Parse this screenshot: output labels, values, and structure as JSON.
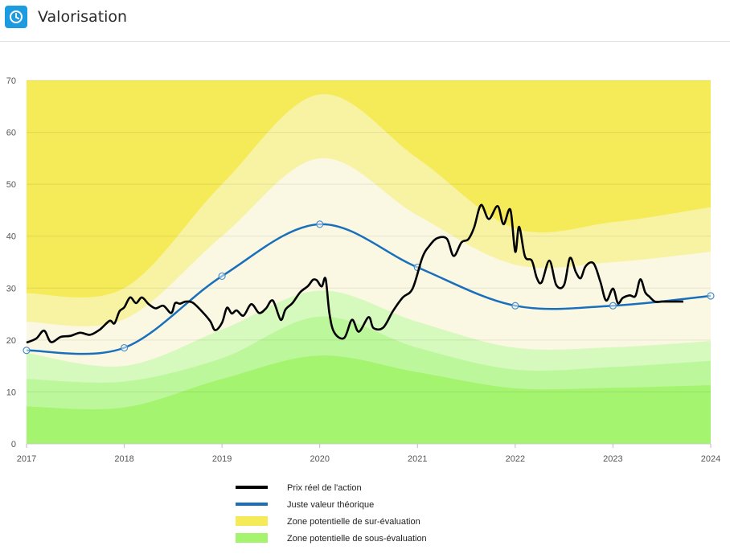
{
  "header": {
    "title": "Valorisation",
    "icon": "clock-icon",
    "icon_color": "#1d9be0"
  },
  "chart_data": {
    "type": "line",
    "title": "Valorisation",
    "xlabel": "",
    "ylabel": "",
    "xlim": [
      2017,
      2024
    ],
    "ylim": [
      0,
      70
    ],
    "x_ticks": [
      "2017",
      "2018",
      "2019",
      "2020",
      "2021",
      "2022",
      "2023",
      "2024"
    ],
    "y_ticks": [
      "0",
      "10",
      "20",
      "30",
      "40",
      "50",
      "60",
      "70"
    ],
    "grid": true,
    "legend_position": "bottom",
    "colors": {
      "price": "#000000",
      "fair_value": "#1a6fbd",
      "over_outer": "#f5ea58",
      "over_mid": "#f8f3a3",
      "over_inner": "#faf8e2",
      "under_inner": "#d6f9be",
      "under_mid": "#bdf79b",
      "under_outer": "#a4f470"
    },
    "series": [
      {
        "name": "Prix réel de l'action",
        "color": "#000000",
        "x": [
          2017.0,
          2017.1,
          2017.18,
          2017.25,
          2017.35,
          2017.45,
          2017.55,
          2017.65,
          2017.75,
          2017.85,
          2017.9,
          2017.95,
          2018.0,
          2018.06,
          2018.12,
          2018.18,
          2018.25,
          2018.32,
          2018.4,
          2018.48,
          2018.52,
          2018.57,
          2018.63,
          2018.7,
          2018.8,
          2018.88,
          2018.93,
          2019.0,
          2019.05,
          2019.1,
          2019.15,
          2019.22,
          2019.3,
          2019.38,
          2019.45,
          2019.52,
          2019.6,
          2019.65,
          2019.72,
          2019.8,
          2019.88,
          2019.93,
          2019.97,
          2020.02,
          2020.06,
          2020.1,
          2020.15,
          2020.25,
          2020.33,
          2020.4,
          2020.5,
          2020.55,
          2020.65,
          2020.75,
          2020.85,
          2020.95,
          2021.05,
          2021.12,
          2021.2,
          2021.3,
          2021.37,
          2021.45,
          2021.52,
          2021.58,
          2021.65,
          2021.73,
          2021.82,
          2021.88,
          2021.95,
          2022.0,
          2022.04,
          2022.1,
          2022.17,
          2022.22,
          2022.27,
          2022.35,
          2022.42,
          2022.5,
          2022.56,
          2022.62,
          2022.67,
          2022.72,
          2022.8,
          2022.87,
          2022.93,
          2023.0,
          2023.05,
          2023.1,
          2023.17,
          2023.23,
          2023.28,
          2023.33,
          2023.37,
          2023.43,
          2023.5,
          2023.55,
          2023.6,
          2023.65,
          2023.72
        ],
        "values": [
          19.5,
          20.3,
          21.8,
          19.6,
          20.6,
          20.8,
          21.4,
          21.0,
          22.0,
          23.7,
          23.2,
          25.5,
          26.3,
          28.2,
          27.1,
          28.2,
          26.9,
          26.1,
          26.6,
          25.2,
          27.1,
          27.0,
          27.4,
          27.2,
          25.4,
          23.6,
          21.9,
          23.3,
          26.2,
          25.1,
          25.7,
          24.7,
          26.9,
          25.2,
          26.1,
          27.6,
          23.9,
          25.9,
          27.1,
          29.2,
          30.4,
          31.6,
          31.5,
          30.3,
          31.8,
          25.0,
          21.4,
          20.4,
          23.9,
          21.6,
          24.4,
          22.3,
          22.4,
          25.6,
          28.2,
          29.9,
          35.9,
          38.1,
          39.6,
          39.5,
          36.2,
          38.8,
          39.4,
          41.7,
          46.0,
          43.3,
          45.8,
          42.3,
          45.1,
          37.0,
          41.8,
          36.1,
          35.3,
          32.0,
          31.1,
          35.3,
          30.6,
          30.6,
          35.8,
          33.1,
          31.9,
          34.2,
          34.8,
          31.3,
          27.6,
          29.9,
          27.1,
          28.1,
          28.6,
          28.5,
          31.7,
          29.2,
          28.4,
          27.4,
          27.4,
          27.4,
          27.4,
          27.4,
          27.4
        ]
      },
      {
        "name": "Juste valeur théorique",
        "color": "#1a6fbd",
        "x": [
          2017,
          2018,
          2019,
          2020,
          2021,
          2022,
          2023,
          2024
        ],
        "values": [
          18.0,
          18.5,
          32.3,
          42.3,
          34.0,
          26.6,
          26.6,
          28.5
        ]
      }
    ],
    "zones": [
      {
        "name": "Zone potentielle de sur-évaluation",
        "color": "#f5ea58",
        "x": [
          2017,
          2018,
          2019,
          2020,
          2021,
          2022,
          2023,
          2024
        ],
        "bands": {
          "outer_upper": [
            70,
            70,
            70,
            70,
            70,
            70,
            70,
            70
          ],
          "upper_2": [
            29.0,
            30.0,
            50.0,
            67.3,
            55.0,
            41.5,
            42.7,
            45.6
          ],
          "upper_1": [
            23.5,
            24.0,
            40.0,
            55.0,
            44.0,
            34.5,
            35.0,
            37.0
          ]
        }
      },
      {
        "name": "Zone potentielle de sous-évaluation",
        "color": "#a4f470",
        "x": [
          2017,
          2018,
          2019,
          2020,
          2021,
          2022,
          2023,
          2024
        ],
        "bands": {
          "lower_1": [
            17.5,
            15.0,
            22.0,
            29.5,
            23.5,
            18.5,
            18.6,
            19.8
          ],
          "lower_2": [
            12.5,
            12.0,
            16.5,
            24.5,
            18.5,
            14.3,
            14.8,
            16.0
          ],
          "lower_3": [
            7.2,
            7.0,
            12.5,
            17.0,
            13.8,
            10.7,
            10.8,
            11.3
          ]
        }
      }
    ],
    "legend": [
      {
        "label": "Prix réel de l'action",
        "kind": "line",
        "color": "#000000"
      },
      {
        "label": "Juste valeur théorique",
        "kind": "line",
        "color": "#1a6fbd"
      },
      {
        "label": "Zone potentielle de sur-évaluation",
        "kind": "box",
        "color": "#f5ea58"
      },
      {
        "label": "Zone potentielle de sous-évaluation",
        "kind": "box",
        "color": "#a4f470"
      }
    ]
  }
}
